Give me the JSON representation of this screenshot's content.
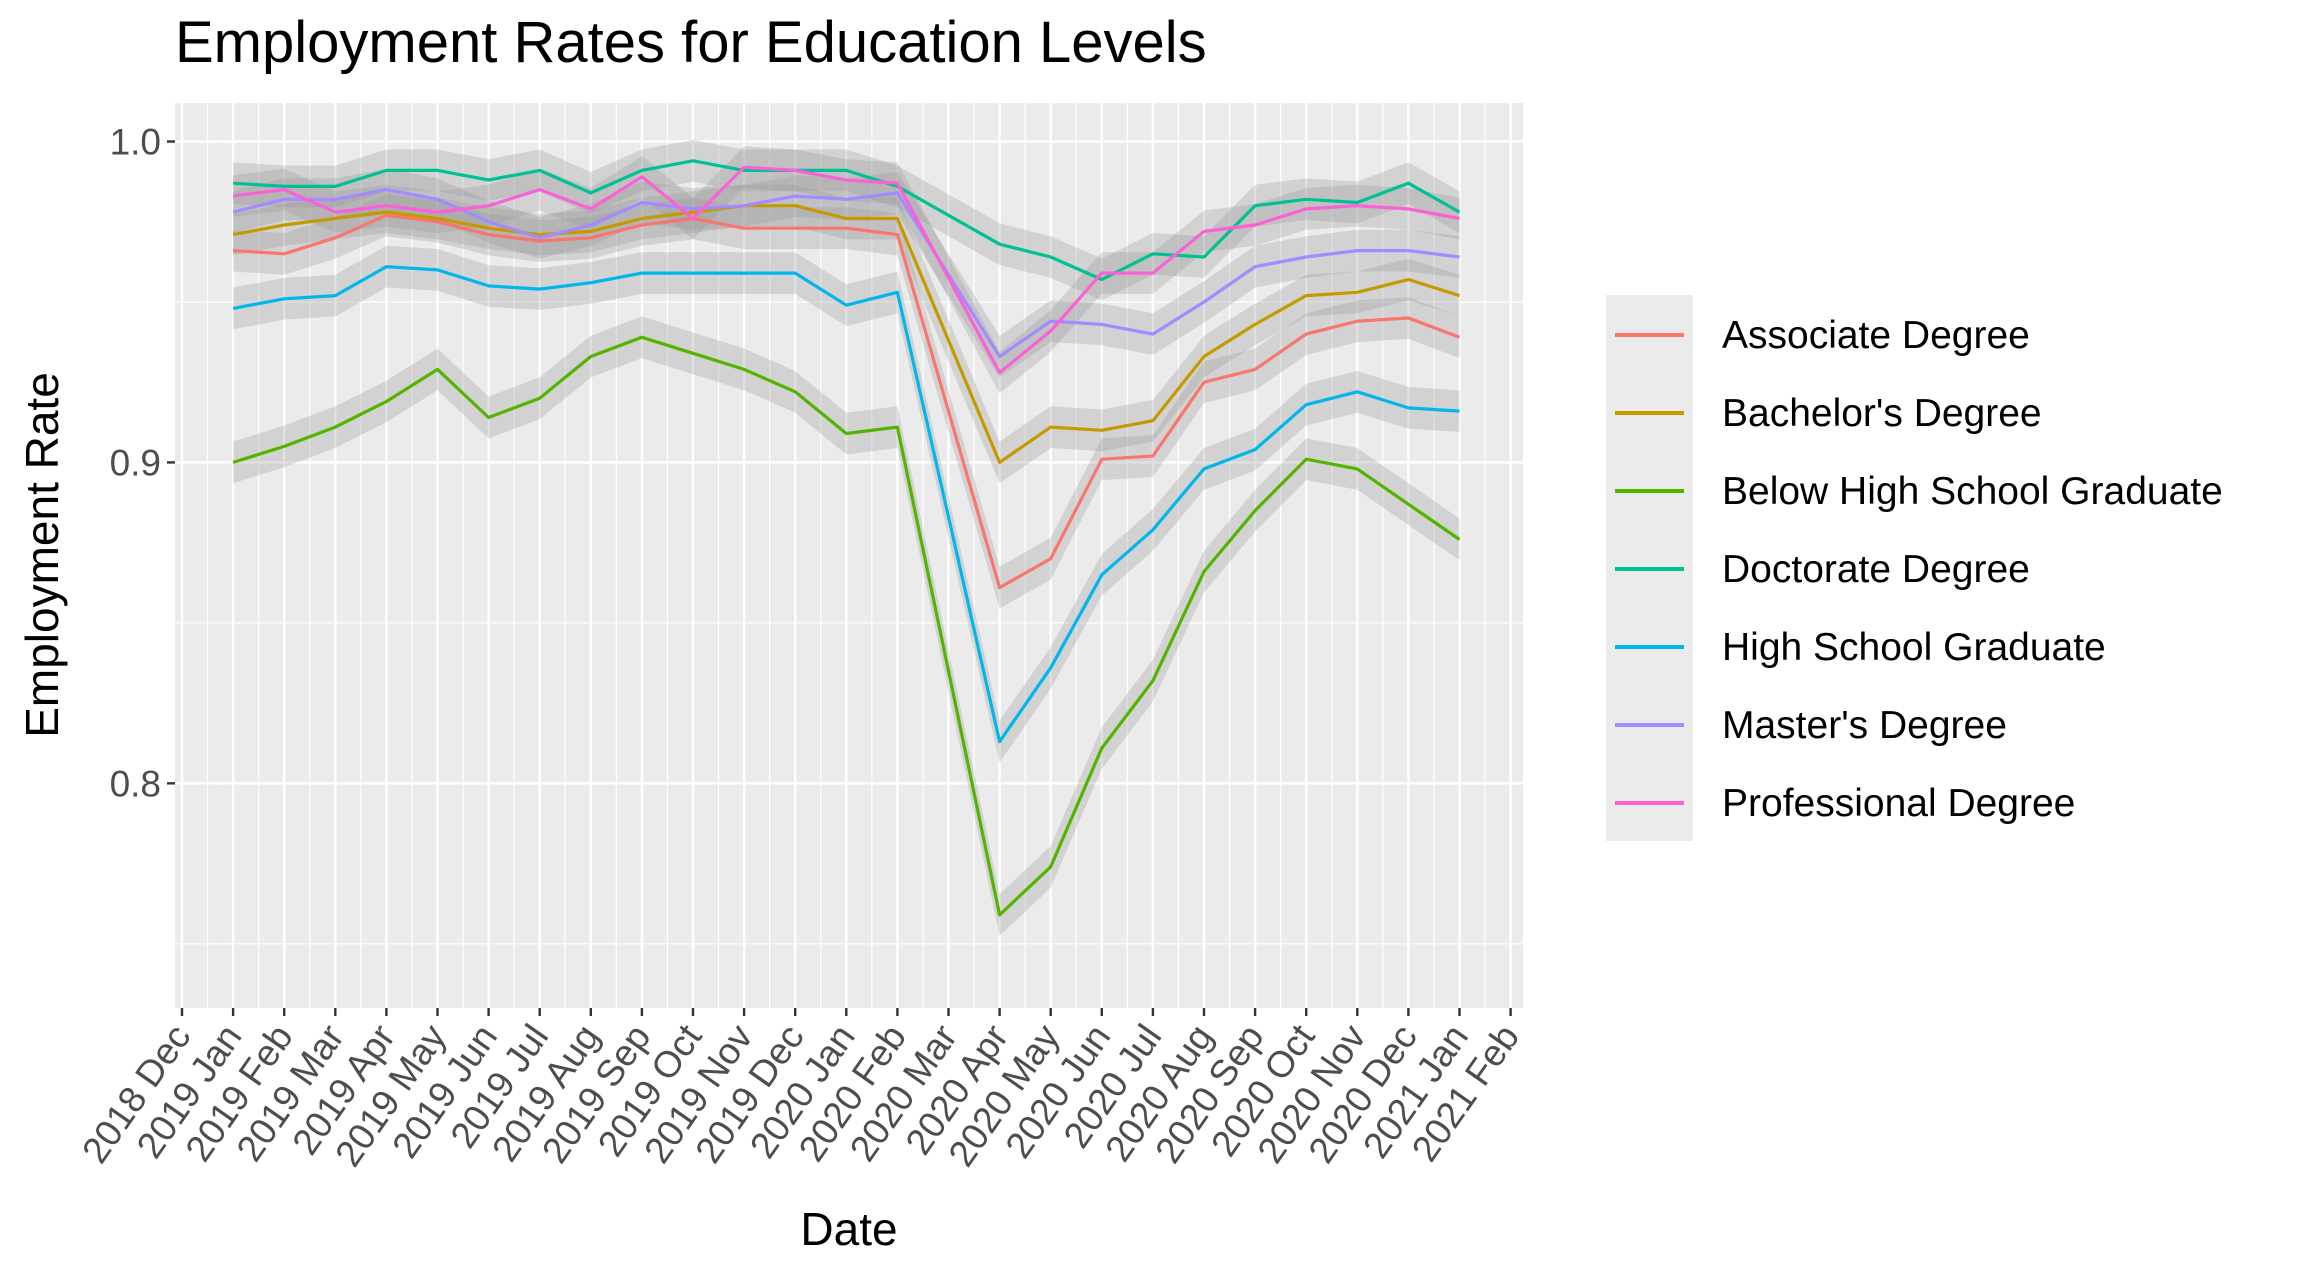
{
  "chart_data": {
    "type": "line",
    "title": "Employment Rates for Education Levels",
    "xlabel": "Date",
    "ylabel": "Employment Rate",
    "x_ticks": [
      "2018 Dec",
      "2019 Jan",
      "2019 Feb",
      "2019 Mar",
      "2019 Apr",
      "2019 May",
      "2019 Jun",
      "2019 Jul",
      "2019 Aug",
      "2019 Sep",
      "2019 Oct",
      "2019 Nov",
      "2019 Dec",
      "2020 Jan",
      "2020 Feb",
      "2020 Mar",
      "2020 Apr",
      "2020 May",
      "2020 Jun",
      "2020 Jul",
      "2020 Aug",
      "2020 Sep",
      "2020 Oct",
      "2020 Nov",
      "2020 Dec",
      "2021 Jan",
      "2021 Feb"
    ],
    "x": [
      "2019 Jan",
      "2019 Feb",
      "2019 Mar",
      "2019 Apr",
      "2019 May",
      "2019 Jun",
      "2019 Jul",
      "2019 Aug",
      "2019 Sep",
      "2019 Oct",
      "2019 Nov",
      "2019 Dec",
      "2020 Jan",
      "2020 Feb",
      "2020 Apr",
      "2020 May",
      "2020 Jun",
      "2020 Jul",
      "2020 Aug",
      "2020 Sep",
      "2020 Oct",
      "2020 Nov",
      "2020 Dec",
      "2021 Jan"
    ],
    "y_ticks": [
      "0.8",
      "0.9",
      "1.0"
    ],
    "y_tick_values": [
      0.8,
      0.9,
      1.0
    ],
    "ylim": [
      0.73,
      1.012
    ],
    "grid": true,
    "legend_position": "right",
    "series": [
      {
        "name": "Associate Degree",
        "color": "#F8766D",
        "values": [
          0.966,
          0.965,
          0.97,
          0.977,
          0.975,
          0.971,
          0.969,
          0.97,
          0.974,
          0.976,
          0.973,
          0.973,
          0.973,
          0.971,
          0.861,
          0.87,
          0.901,
          0.902,
          0.925,
          0.929,
          0.94,
          0.944,
          0.945,
          0.939
        ]
      },
      {
        "name": "Bachelor's Degree",
        "color": "#C49A00",
        "values": [
          0.971,
          0.974,
          0.976,
          0.978,
          0.976,
          0.973,
          0.971,
          0.972,
          0.976,
          0.978,
          0.98,
          0.98,
          0.976,
          0.976,
          0.9,
          0.911,
          0.91,
          0.913,
          0.933,
          0.943,
          0.952,
          0.953,
          0.957,
          0.952
        ]
      },
      {
        "name": "Below High School Graduate",
        "color": "#53B400",
        "values": [
          0.9,
          0.905,
          0.911,
          0.919,
          0.929,
          0.914,
          0.92,
          0.933,
          0.939,
          0.934,
          0.929,
          0.922,
          0.909,
          0.911,
          0.759,
          0.774,
          0.811,
          0.832,
          0.866,
          0.885,
          0.901,
          0.898,
          0.887,
          0.876
        ]
      },
      {
        "name": "Doctorate Degree",
        "color": "#00C094",
        "values": [
          0.987,
          0.986,
          0.986,
          0.991,
          0.991,
          0.988,
          0.991,
          0.984,
          0.991,
          0.994,
          0.991,
          0.991,
          0.991,
          0.986,
          0.968,
          0.964,
          0.957,
          0.965,
          0.964,
          0.98,
          0.982,
          0.981,
          0.987,
          0.978
        ]
      },
      {
        "name": "High School Graduate",
        "color": "#00B6EB",
        "values": [
          0.948,
          0.951,
          0.952,
          0.961,
          0.96,
          0.955,
          0.954,
          0.956,
          0.959,
          0.959,
          0.959,
          0.959,
          0.949,
          0.953,
          0.813,
          0.836,
          0.865,
          0.879,
          0.898,
          0.904,
          0.918,
          0.922,
          0.917,
          0.916
        ]
      },
      {
        "name": "Master's Degree",
        "color": "#A58AFF",
        "values": [
          0.978,
          0.982,
          0.982,
          0.985,
          0.982,
          0.975,
          0.97,
          0.974,
          0.981,
          0.979,
          0.98,
          0.983,
          0.982,
          0.984,
          0.933,
          0.944,
          0.943,
          0.94,
          0.95,
          0.961,
          0.964,
          0.966,
          0.966,
          0.964
        ]
      },
      {
        "name": "Professional Degree",
        "color": "#FB61D7",
        "values": [
          0.983,
          0.985,
          0.978,
          0.98,
          0.978,
          0.98,
          0.985,
          0.979,
          0.989,
          0.976,
          0.992,
          0.991,
          0.988,
          0.987,
          0.928,
          0.941,
          0.959,
          0.959,
          0.972,
          0.974,
          0.979,
          0.98,
          0.979,
          0.976
        ]
      }
    ]
  }
}
